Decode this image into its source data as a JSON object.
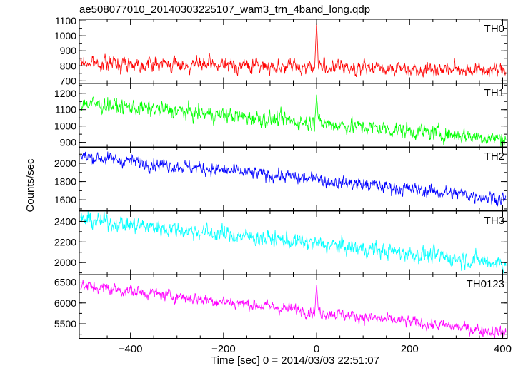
{
  "title": "ae508077010_20140303225107_wam3_trn_4band_long.qdp",
  "chart_data": {
    "type": "line",
    "title": "ae508077010_20140303225107_wam3_trn_4band_long.qdp",
    "xlabel": "Time [sec] 0 = 2014/03/03 22:51:07",
    "ylabel": "Counts/sec",
    "xlim": [
      -510,
      410
    ],
    "x_ticks": [
      -400,
      -200,
      0,
      200,
      400
    ],
    "x_tick_labels": [
      "−400",
      "−200",
      "0",
      "200",
      "400"
    ],
    "grid": false,
    "panels": [
      {
        "name": "TH0",
        "color": "#ff0000",
        "ylim": [
          685,
          1110
        ],
        "y_ticks": [
          700,
          800,
          900,
          1000,
          1100
        ],
        "y_tick_labels": [
          "700",
          "800",
          "900",
          "1000",
          "1100"
        ],
        "trend": [
          [
            -510,
            820
          ],
          [
            410,
            770
          ]
        ],
        "noise": 30,
        "peak": {
          "x": 0,
          "value": 1100
        }
      },
      {
        "name": "TH1",
        "color": "#00ff00",
        "ylim": [
          870,
          1260
        ],
        "y_ticks": [
          900,
          1000,
          1100,
          1200
        ],
        "y_tick_labels": [
          "900",
          "1000",
          "1100",
          "1200"
        ],
        "trend": [
          [
            -510,
            1140
          ],
          [
            410,
            920
          ]
        ],
        "noise": 30,
        "peak": {
          "x": 0,
          "value": 1200
        }
      },
      {
        "name": "TH2",
        "color": "#0000ff",
        "ylim": [
          1480,
          2180
        ],
        "y_ticks": [
          1600,
          1800,
          2000
        ],
        "y_tick_labels": [
          "1600",
          "1800",
          "2000"
        ],
        "trend": [
          [
            -510,
            2080
          ],
          [
            410,
            1610
          ]
        ],
        "noise": 45,
        "peak": {
          "x": 0,
          "value": 1880
        }
      },
      {
        "name": "TH3",
        "color": "#00ffff",
        "ylim": [
          1880,
          2500
        ],
        "y_ticks": [
          2000,
          2200,
          2400
        ],
        "y_tick_labels": [
          "2000",
          "2200",
          "2400"
        ],
        "trend": [
          [
            -510,
            2420
          ],
          [
            410,
            1990
          ]
        ],
        "noise": 50,
        "peak": null
      },
      {
        "name": "TH0123",
        "color": "#ff00ff",
        "ylim": [
          5150,
          6680
        ],
        "y_ticks": [
          5500,
          6000,
          6500
        ],
        "y_tick_labels": [
          "5500",
          "6000",
          "6500"
        ],
        "trend": [
          [
            -510,
            6420
          ],
          [
            410,
            5280
          ]
        ],
        "noise": 90,
        "peak": {
          "x": 0,
          "value": 6450
        }
      }
    ]
  }
}
